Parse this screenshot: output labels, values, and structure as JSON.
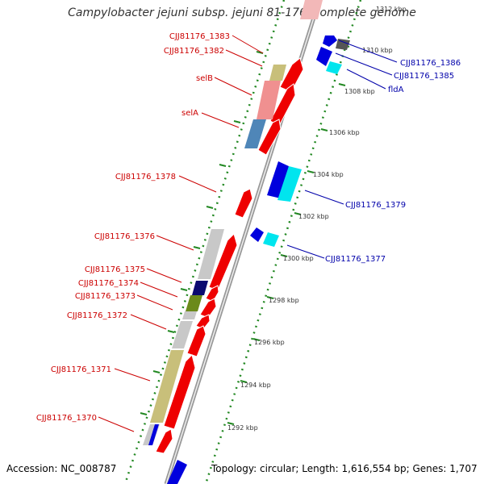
{
  "title": "Campylobacter jejuni subsp. jejuni 81-176, complete genome",
  "footer": {
    "accession": "Accession: NC_008787",
    "topology": "Topology: circular; Length: 1,616,554 bp; Genes: 1,707"
  },
  "ticks": [
    "1312 kbp",
    "1310 kbp",
    "1308 kbp",
    "1306 kbp",
    "1304 kbp",
    "1302 kbp",
    "1300 kbp",
    "1298 kbp",
    "1296 kbp",
    "1294 kbp",
    "1292 kbp"
  ],
  "left_labels": [
    "CJJ81176_1383",
    "CJJ81176_1382",
    "selB",
    "selA",
    "CJJ81176_1378",
    "CJJ81176_1376",
    "CJJ81176_1375",
    "CJJ81176_1374",
    "CJJ81176_1373",
    "CJJ81176_1372",
    "CJJ81176_1371",
    "CJJ81176_1370"
  ],
  "right_labels": [
    "CJJ81176_1386",
    "CJJ81176_1385",
    "fldA",
    "CJJ81176_1379",
    "CJJ81176_1377"
  ],
  "colors": {
    "label_left": "#cc0000",
    "label_right": "#0000aa",
    "gene_forward": "#ee0000",
    "gene_reverse_blue": "#0000dd",
    "gene_reverse_cyan": "#00e5ee",
    "backbone": "#888888",
    "ruler": "#228822"
  }
}
